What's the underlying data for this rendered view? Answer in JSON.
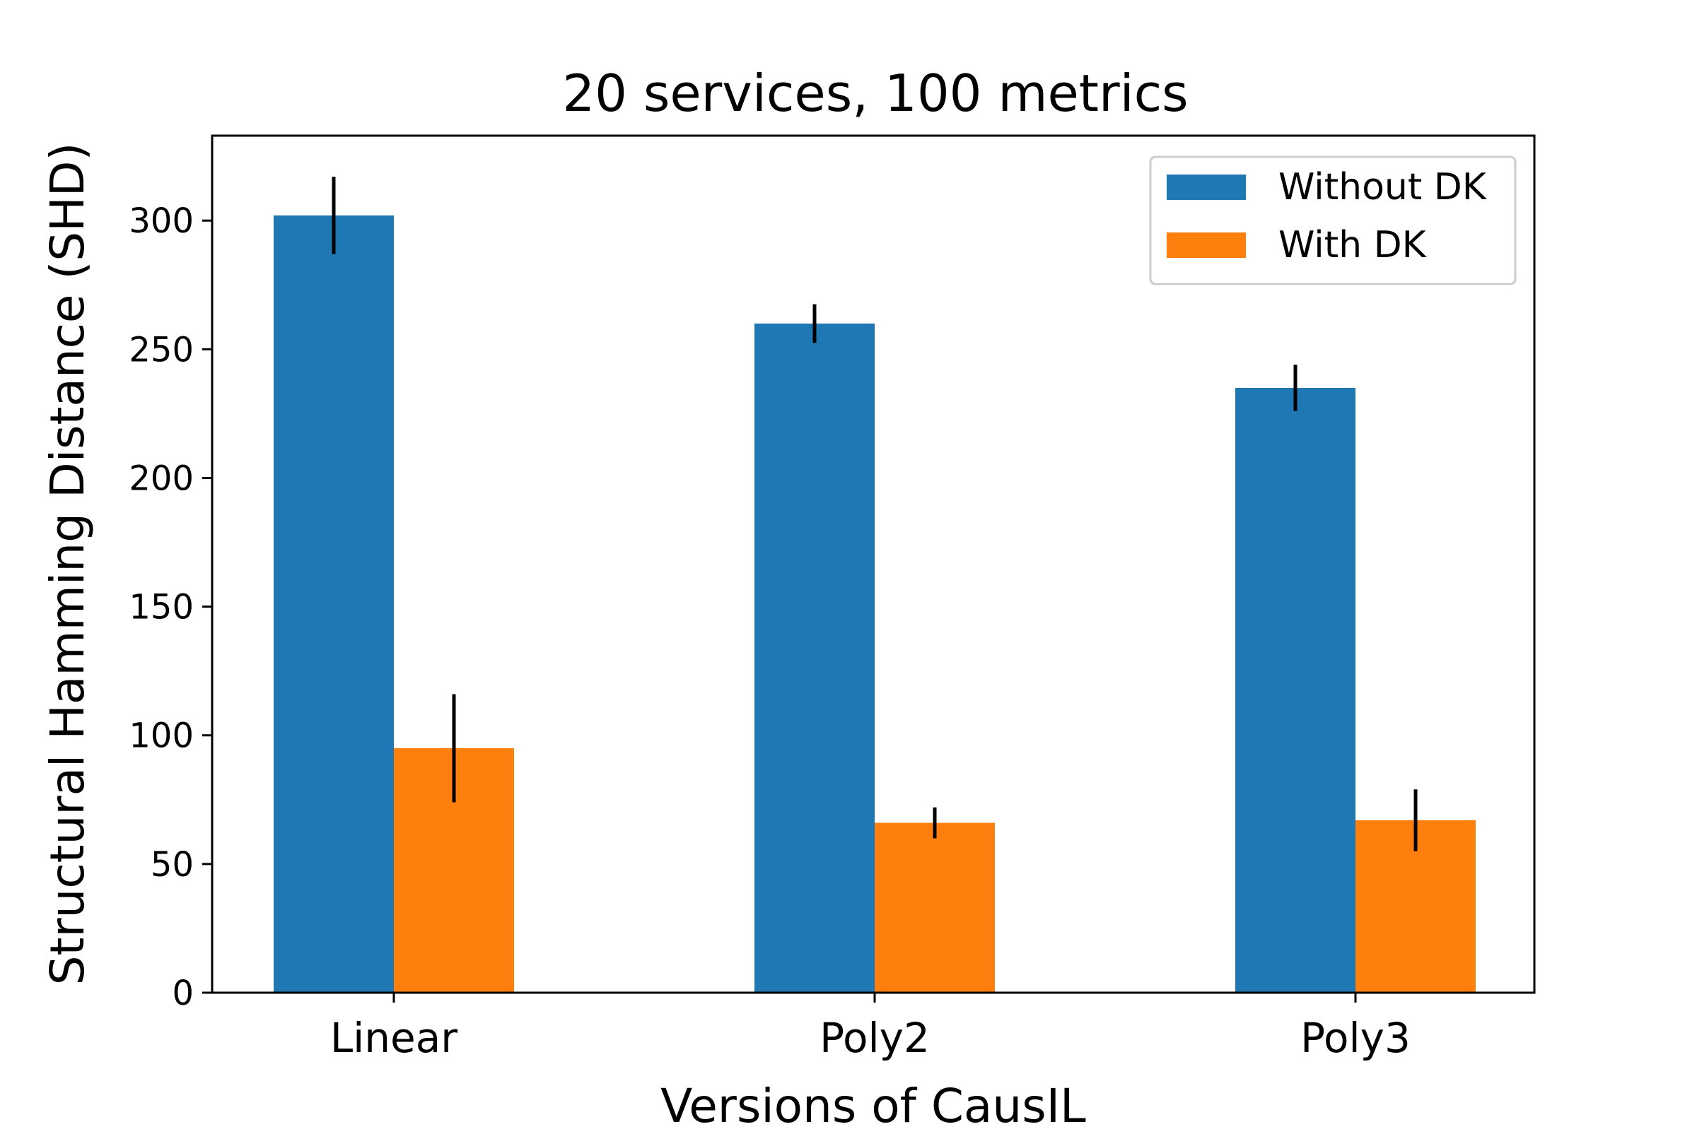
{
  "chart_data": {
    "type": "bar",
    "title": "20 services, 100 metrics",
    "xlabel": "Versions of CausIL",
    "ylabel": "Structural Hamming Distance (SHD)",
    "categories": [
      "Linear",
      "Poly2",
      "Poly3"
    ],
    "series": [
      {
        "name": "Without DK",
        "color": "#1f77b4",
        "values": [
          302,
          260,
          235
        ],
        "errors": [
          15,
          7.5,
          9
        ]
      },
      {
        "name": "With DK",
        "color": "#ff7f0e",
        "values": [
          95,
          66,
          67
        ],
        "errors": [
          21,
          6,
          12
        ]
      }
    ],
    "ylim": [
      0,
      333
    ],
    "yticks": [
      0,
      50,
      100,
      150,
      200,
      250,
      300
    ],
    "grid": false,
    "legend_position": "top-right"
  }
}
